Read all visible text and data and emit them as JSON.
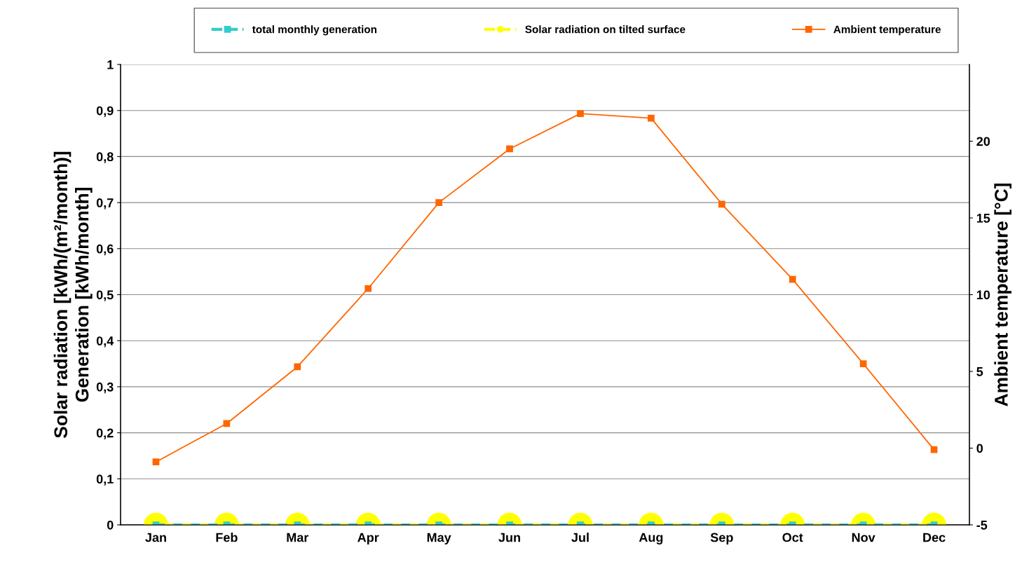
{
  "chart_data": {
    "type": "line",
    "categories": [
      "Jan",
      "Feb",
      "Mar",
      "Apr",
      "May",
      "Jun",
      "Jul",
      "Aug",
      "Sep",
      "Oct",
      "Nov",
      "Dec"
    ],
    "series": [
      {
        "name": "total monthly generation",
        "color": "#33cccc",
        "marker": "square",
        "line_style": "dashed",
        "values": [
          0,
          0,
          0,
          0,
          0,
          0,
          0,
          0,
          0,
          0,
          0,
          0
        ]
      },
      {
        "name": "Solar radiation on tilted surface",
        "color": "#ffff00",
        "marker": "circle",
        "line_style": "dashed",
        "values": [
          0,
          0,
          0,
          0,
          0,
          0,
          0,
          0,
          0,
          0,
          0,
          0
        ]
      },
      {
        "name": "Ambient temperature",
        "color": "#ff6600",
        "marker": "square",
        "line_style": "solid",
        "axis": "y2",
        "values": [
          -0.9,
          1.6,
          5.3,
          10.4,
          16.0,
          19.5,
          21.8,
          21.5,
          15.9,
          11.0,
          5.5,
          -0.1
        ]
      }
    ],
    "ylabel": "Solar radiation [kWh/(m²/month)]\nGeneration [kWh/month]",
    "y2label": "Ambient temperature [°C]",
    "ylim": [
      0,
      1
    ],
    "yticks": [
      0,
      {
        "value": 0.1,
        "label": "0,1"
      },
      {
        "value": 0.2,
        "label": "0,2"
      },
      {
        "value": 0.3,
        "label": "0,3"
      },
      {
        "value": 0.4,
        "label": "0,4"
      },
      {
        "value": 0.5,
        "label": "0,5"
      },
      {
        "value": 0.6,
        "label": "0,6"
      },
      {
        "value": 0.7,
        "label": "0,7"
      },
      {
        "value": 0.8,
        "label": "0,8"
      },
      {
        "value": 0.9,
        "label": "0,9"
      },
      1
    ],
    "y2lim": [
      -5,
      25
    ],
    "y2ticks": [
      -5,
      0,
      5,
      10,
      15,
      20
    ],
    "grid": "y",
    "legend": "top"
  }
}
